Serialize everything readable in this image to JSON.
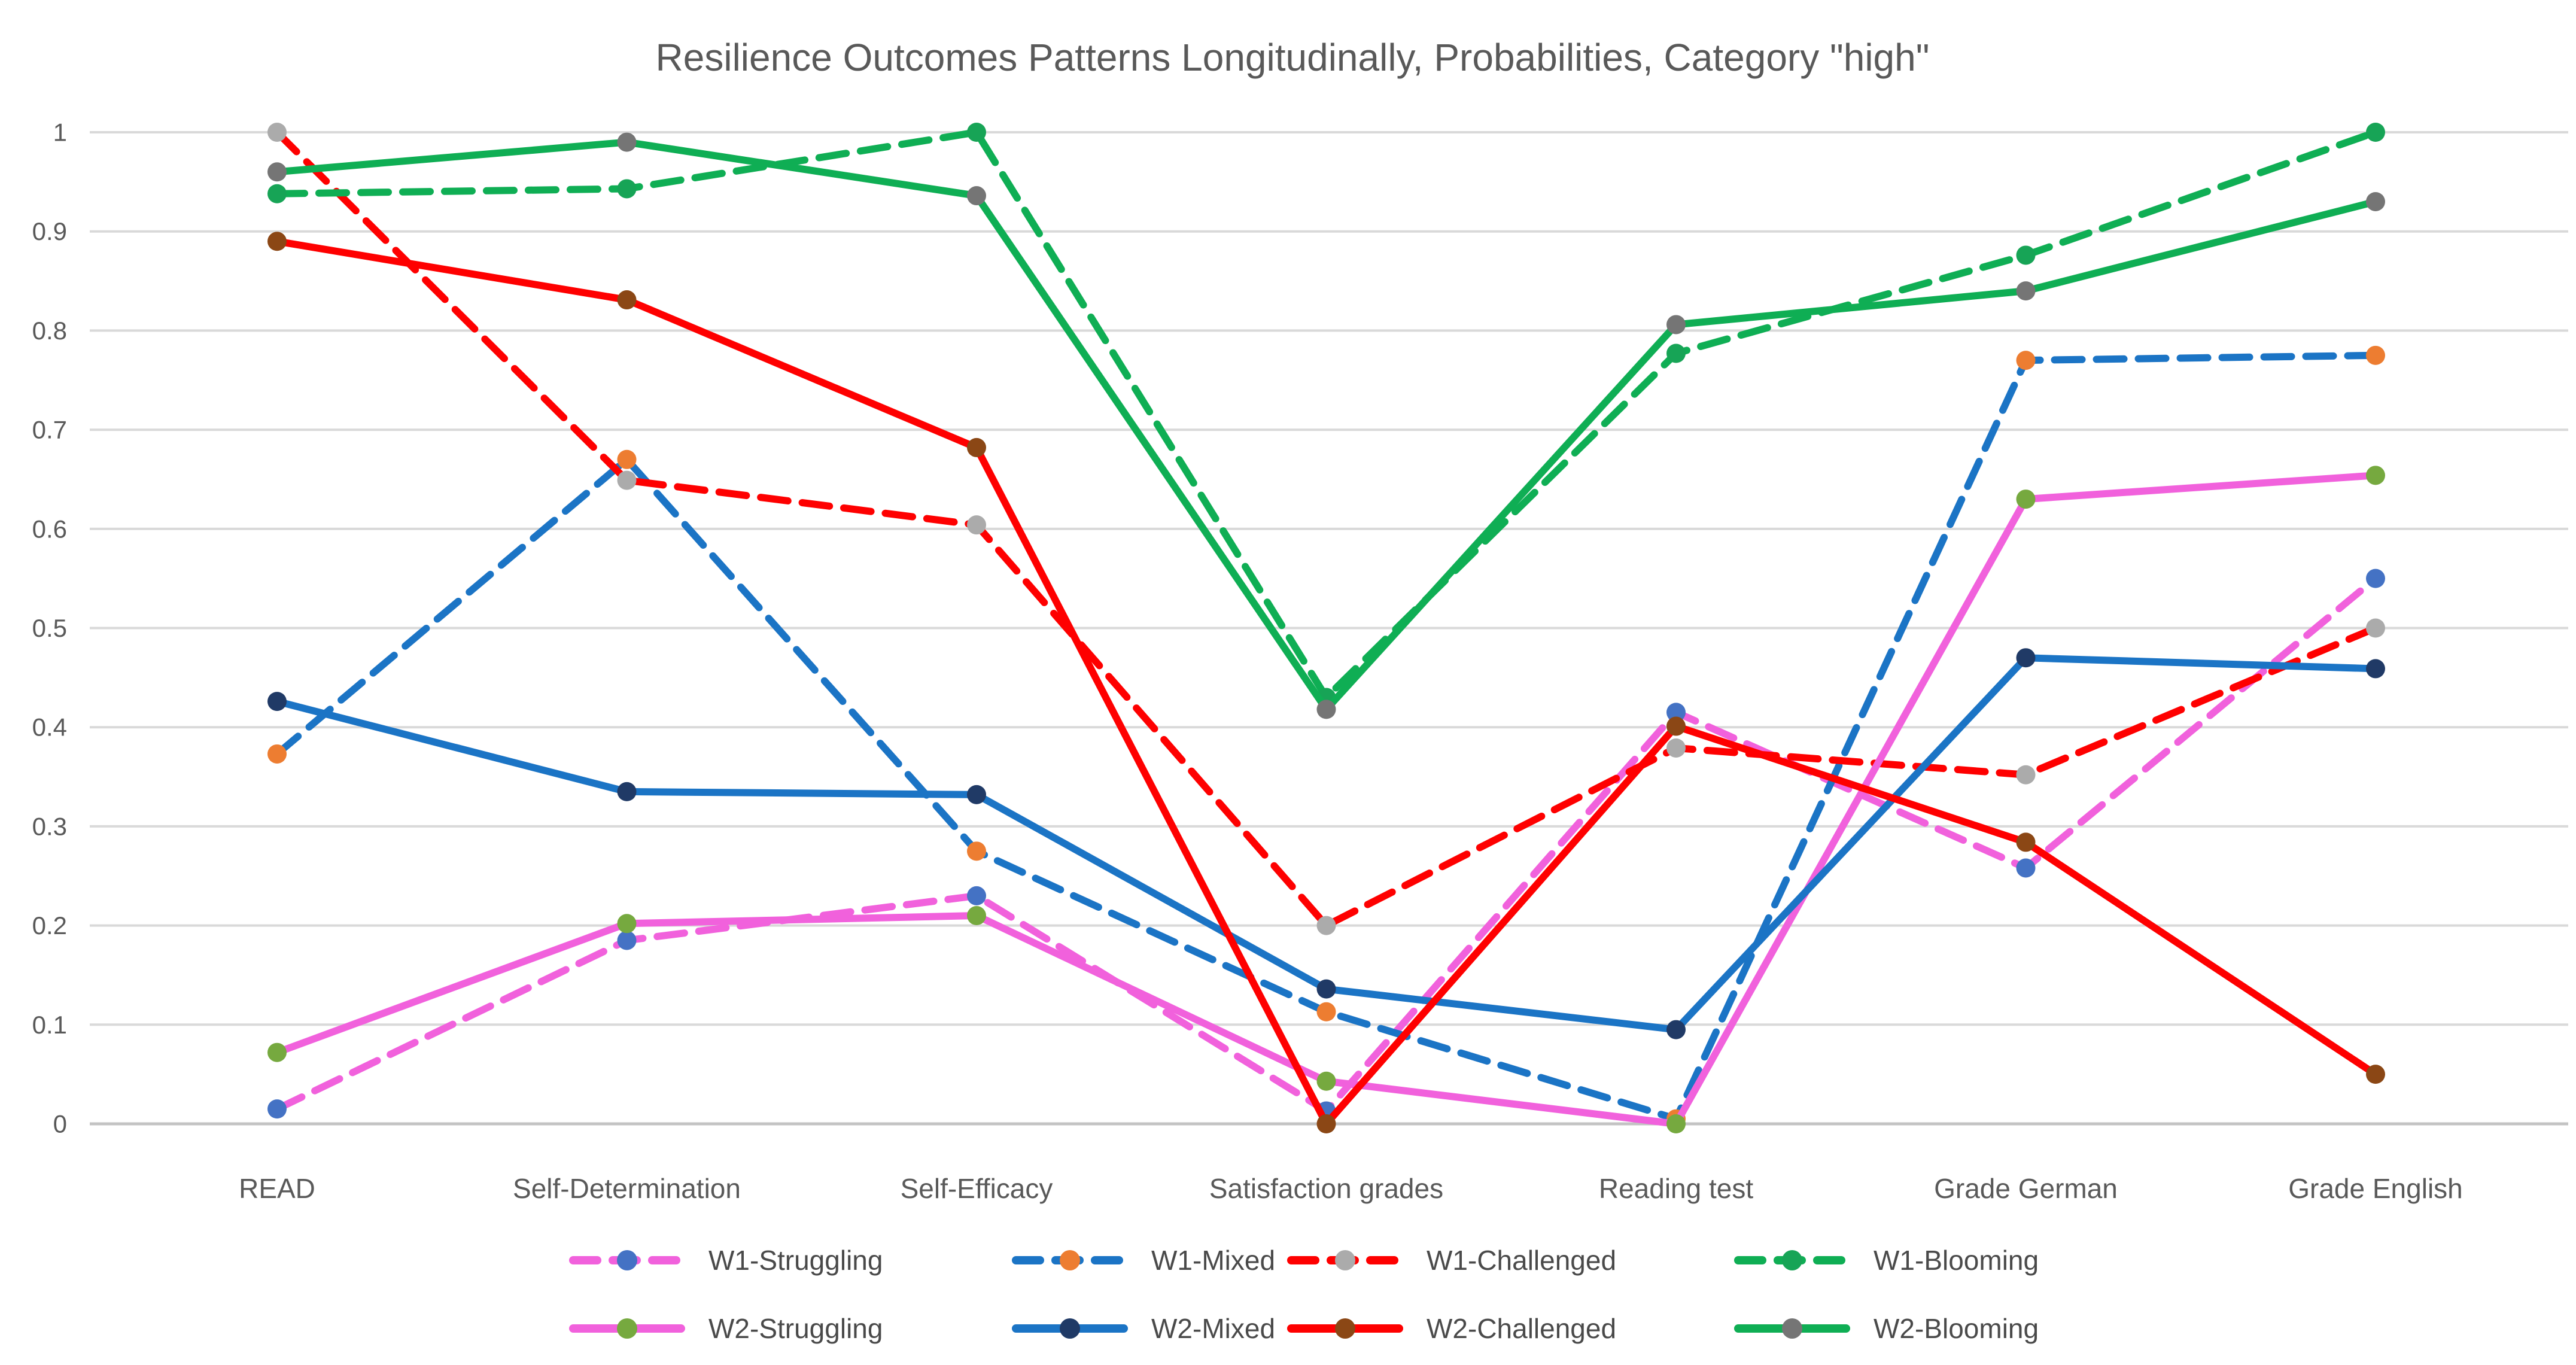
{
  "title": "Resilience Outcomes Patterns Longitudinally, Probabilities, Category \"high\"",
  "colors": {
    "title_text": "#595959",
    "axis_text": "#595959",
    "legend_text": "#4a4a4a",
    "gridline": "#d9d9d9",
    "baseline": "#c3c3c3",
    "background": "#ffffff"
  },
  "chart_data": {
    "type": "line",
    "title": "Resilience Outcomes Patterns Longitudinally, Probabilities, Category \"high\"",
    "xlabel": "",
    "ylabel": "",
    "ylim": [
      0,
      1
    ],
    "grid": "horizontal",
    "legend_position": "bottom-two-rows",
    "y_tick_labels": [
      "1",
      "0.9",
      "0.8",
      "0.7",
      "0.6",
      "0.5",
      "0.4",
      "0.3",
      "0.2",
      "0.1",
      "0"
    ],
    "y_tick_values": [
      1,
      0.9,
      0.8,
      0.7,
      0.6,
      0.5,
      0.4,
      0.3,
      0.2,
      0.1,
      0
    ],
    "categories": [
      "READ",
      "Self-Determination",
      "Self-Efficacy",
      "Satisfaction grades",
      "Reading test",
      "Grade German",
      "Grade English"
    ],
    "series": [
      {
        "name": "W1-Struggling",
        "legend_row": 1,
        "style": "dashed",
        "line_color": "#f161dc",
        "marker_color": "#4472c4",
        "values": [
          0.015,
          0.185,
          0.23,
          0.013,
          0.415,
          0.258,
          0.55
        ]
      },
      {
        "name": "W1-Mixed",
        "legend_row": 1,
        "style": "dashed",
        "line_color": "#1b74c5",
        "marker_color": "#ed7d31",
        "values": [
          0.373,
          0.67,
          0.275,
          0.113,
          0.005,
          0.77,
          0.775
        ]
      },
      {
        "name": "W1-Challenged",
        "legend_row": 1,
        "style": "dashed",
        "line_color": "#fe0000",
        "marker_color": "#ababab",
        "values": [
          1.0,
          0.649,
          0.604,
          0.2,
          0.379,
          0.352,
          0.5
        ]
      },
      {
        "name": "W1-Blooming",
        "legend_row": 1,
        "style": "dashed",
        "line_color": "#0fae54",
        "marker_color": "#17a456",
        "values": [
          0.938,
          0.943,
          1.0,
          0.43,
          0.777,
          0.876,
          1.0
        ]
      },
      {
        "name": "W2-Struggling",
        "legend_row": 2,
        "style": "solid",
        "line_color": "#f161dc",
        "marker_color": "#76a93f",
        "values": [
          0.072,
          0.202,
          0.21,
          0.043,
          0.0,
          0.63,
          0.654
        ]
      },
      {
        "name": "W2-Mixed",
        "legend_row": 2,
        "style": "solid",
        "line_color": "#1b74c5",
        "marker_color": "#203a66",
        "values": [
          0.426,
          0.335,
          0.332,
          0.136,
          0.095,
          0.47,
          0.459
        ]
      },
      {
        "name": "W2-Challenged",
        "legend_row": 2,
        "style": "solid",
        "line_color": "#fe0000",
        "marker_color": "#8b4715",
        "values": [
          0.89,
          0.831,
          0.682,
          0.0,
          0.401,
          0.284,
          0.05
        ]
      },
      {
        "name": "W2-Blooming",
        "legend_row": 2,
        "style": "solid",
        "line_color": "#0fae54",
        "marker_color": "#757575",
        "values": [
          0.96,
          0.99,
          0.936,
          0.418,
          0.806,
          0.84,
          0.93
        ]
      }
    ]
  }
}
